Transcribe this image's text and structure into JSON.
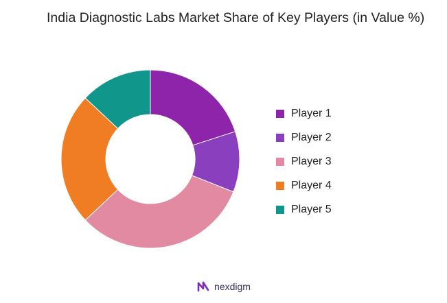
{
  "chart_data": {
    "type": "pie",
    "title": "India Diagnostic Labs Market Share of Key Players (in Value %)",
    "donut": true,
    "legend_position": "right",
    "categories": [
      "Player 1",
      "Player 2",
      "Player 3",
      "Player 4",
      "Player 5"
    ],
    "values": [
      20,
      11,
      32,
      24,
      13
    ],
    "colors": [
      "#8e24aa",
      "#8a3fbf",
      "#e28aa2",
      "#f07d24",
      "#11968b"
    ]
  },
  "footer": {
    "brand": "nexdigm",
    "logo_icon": "nexdigm-logo-icon"
  }
}
